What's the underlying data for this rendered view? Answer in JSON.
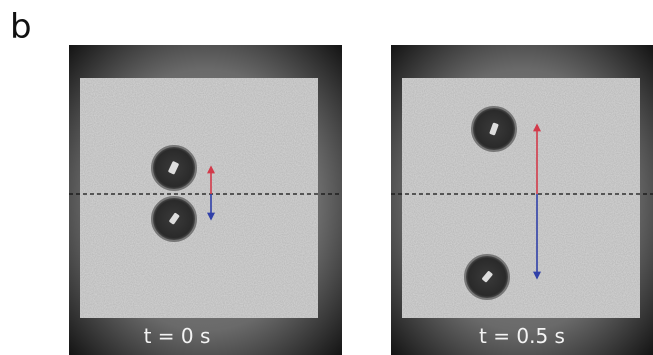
{
  "panel_label": "b",
  "images": [
    {
      "caption": "t = 0 s"
    },
    {
      "caption": "t = 0.5 s"
    }
  ]
}
